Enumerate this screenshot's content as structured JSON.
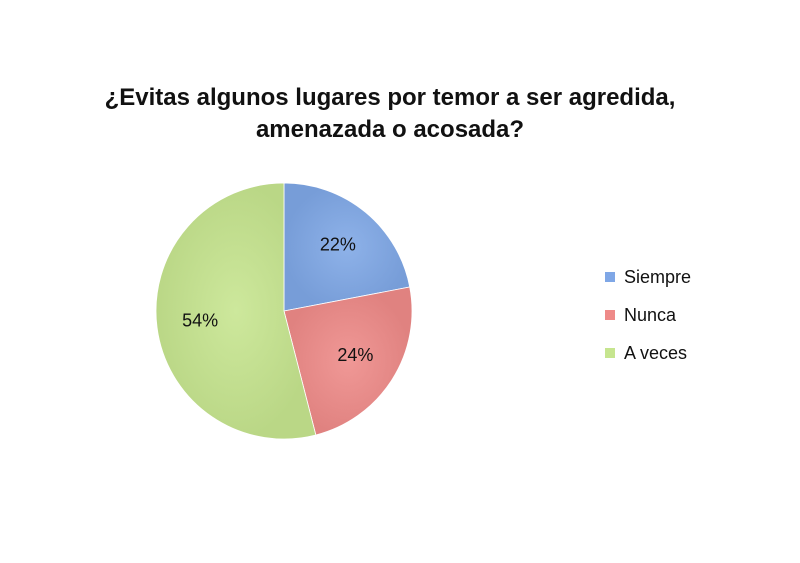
{
  "chart_data": {
    "type": "pie",
    "title": [
      "¿Evitas algunos lugares por temor a ser agredida,",
      "amenazada o acosada?"
    ],
    "categories": [
      "Siempre",
      "Nunca",
      "A veces"
    ],
    "values": [
      22,
      24,
      54
    ],
    "labels": [
      "22%",
      "24%",
      "54%"
    ],
    "unit": "%",
    "colors": [
      "#7fa7e6",
      "#ee8a88",
      "#c6e58f"
    ],
    "legend_position": "right"
  }
}
